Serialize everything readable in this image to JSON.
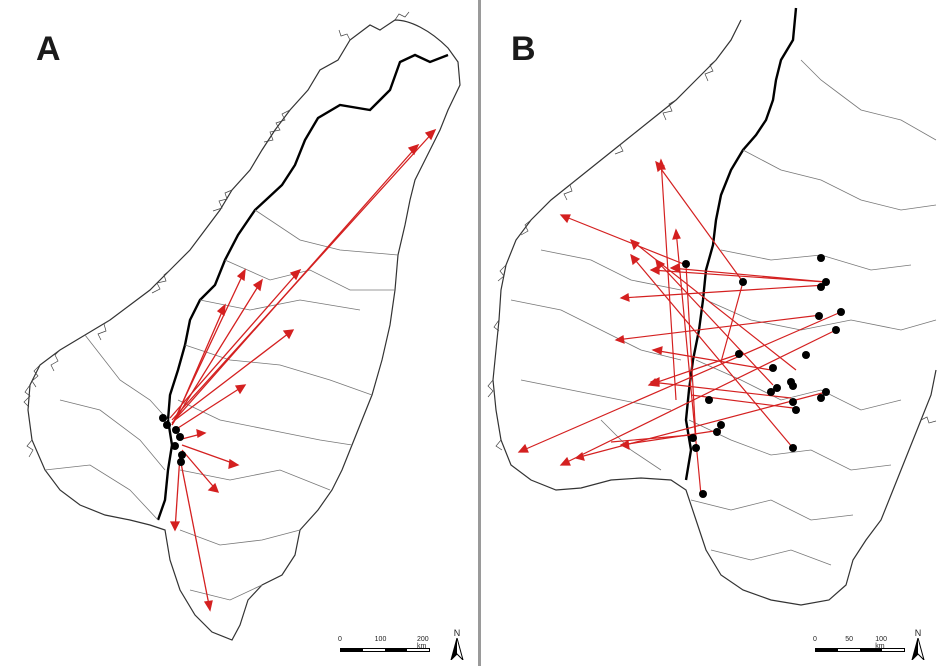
{
  "panels": [
    {
      "label": "A",
      "scale": {
        "ticks": [
          "0",
          "100",
          "200 km"
        ]
      },
      "north_label": "N",
      "colors": {
        "arrow": "#d42020",
        "point": "#000000",
        "border_national": "#000000",
        "border_regional": "#777777"
      },
      "icons": [
        "north-arrow-icon",
        "scale-bar"
      ]
    },
    {
      "label": "B",
      "scale": {
        "ticks": [
          "0",
          "50",
          "100 km"
        ]
      },
      "north_label": "N",
      "colors": {
        "arrow": "#d42020",
        "point": "#000000",
        "border_national": "#000000",
        "border_regional": "#777777"
      },
      "icons": [
        "north-arrow-icon",
        "scale-bar"
      ]
    }
  ]
}
